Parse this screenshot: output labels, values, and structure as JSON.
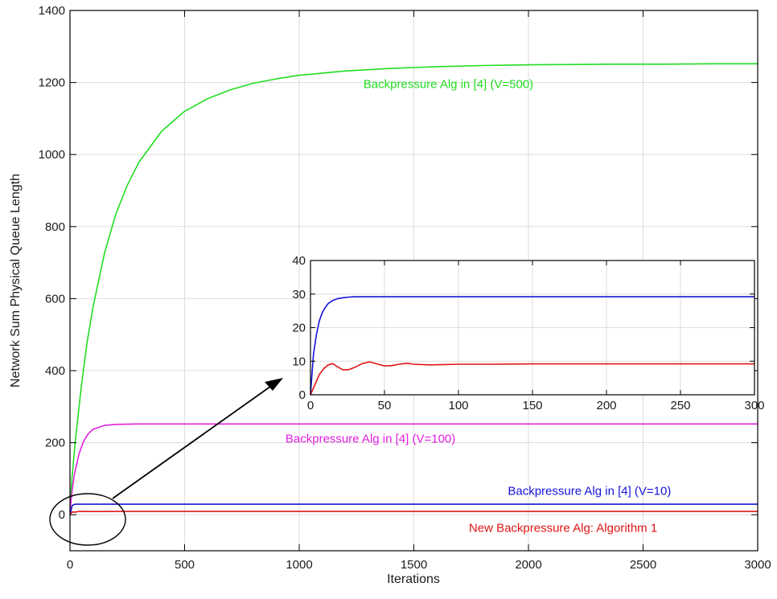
{
  "chart_data": {
    "type": "line",
    "xlabel": "Iterations",
    "ylabel": "Network Sum Physical Queue Length",
    "xlim": [
      0,
      3000
    ],
    "ylim": [
      -100,
      1400
    ],
    "xticks": [
      0,
      500,
      1000,
      1500,
      2000,
      2500,
      3000
    ],
    "yticks": [
      0,
      200,
      400,
      600,
      800,
      1000,
      1200,
      1400
    ],
    "grid": true,
    "series": [
      {
        "name": "Backpressure Alg in [4] (V=500)",
        "color": "#22dd22",
        "x": [
          0,
          10,
          25,
          50,
          75,
          100,
          150,
          200,
          250,
          300,
          400,
          500,
          600,
          700,
          800,
          900,
          1000,
          1200,
          1400,
          1600,
          1800,
          2000,
          2200,
          2400,
          2600,
          2800,
          3000
        ],
        "y": [
          20,
          110,
          215,
          360,
          480,
          575,
          725,
          835,
          915,
          978,
          1065,
          1120,
          1155,
          1180,
          1198,
          1210,
          1220,
          1232,
          1239,
          1244,
          1247,
          1249,
          1250,
          1251,
          1251,
          1252,
          1252
        ]
      },
      {
        "name": "Backpressure Alg in [4] (V=100)",
        "color": "#e020e0",
        "x": [
          0,
          10,
          20,
          40,
          60,
          80,
          100,
          150,
          200,
          300,
          400,
          500,
          700,
          1000,
          1500,
          2000,
          2500,
          3000
        ],
        "y": [
          10,
          70,
          115,
          170,
          205,
          225,
          237,
          248,
          251,
          252,
          252,
          252,
          252,
          252,
          252,
          252,
          252,
          252
        ]
      },
      {
        "name": "Backpressure Alg in [4] (V=10)",
        "color": "#1515d8",
        "x": [
          0,
          10,
          20,
          30,
          50,
          100,
          200,
          500,
          1000,
          1500,
          2000,
          2500,
          3000
        ],
        "y": [
          0,
          26,
          28.8,
          29.2,
          29.2,
          29.2,
          29.2,
          29.2,
          29.2,
          29.2,
          29.2,
          29.2,
          29.2
        ]
      },
      {
        "name": "New Backpressure Alg: Algorithm 1",
        "color": "#e01515",
        "x": [
          0,
          10,
          20,
          30,
          40,
          60,
          100,
          200,
          500,
          1000,
          1500,
          2000,
          2500,
          3000
        ],
        "y": [
          0,
          8,
          7,
          8,
          9.6,
          9,
          9,
          9.2,
          9.2,
          9.2,
          9.2,
          9.2,
          9.2,
          9.2
        ]
      }
    ],
    "annotations": [
      {
        "text": "Backpressure Alg in [4] (V=500)",
        "color": "#22dd22",
        "x": 1280,
        "y": 1185
      },
      {
        "text": "Backpressure Alg in [4] (V=100)",
        "color": "#e020e0",
        "x": 940,
        "y": 200
      },
      {
        "text": "Backpressure Alg in [4] (V=10)",
        "color": "#1515d8",
        "x": 1910,
        "y": 55
      },
      {
        "text": "New Backpressure Alg: Algorithm 1",
        "color": "#e01515",
        "x": 1740,
        "y": -48
      }
    ],
    "inset": {
      "type": "line",
      "xlim": [
        0,
        300
      ],
      "ylim": [
        0,
        40
      ],
      "xticks": [
        0,
        50,
        100,
        150,
        200,
        250,
        300
      ],
      "yticks": [
        0,
        10,
        20,
        30,
        40
      ],
      "grid": true,
      "series": [
        {
          "name": "Backpressure Alg in [4] (V=10)",
          "color": "#1515d8",
          "x": [
            0,
            2,
            4,
            6,
            8,
            10,
            12,
            15,
            18,
            22,
            26,
            30,
            40,
            60,
            80,
            100,
            150,
            200,
            250,
            300
          ],
          "y": [
            0,
            12,
            18,
            22,
            24.5,
            26,
            27.2,
            28.1,
            28.6,
            28.9,
            29.1,
            29.2,
            29.2,
            29.2,
            29.2,
            29.2,
            29.2,
            29.2,
            29.2,
            29.2
          ]
        },
        {
          "name": "New Backpressure Alg: Algorithm 1",
          "color": "#e01515",
          "x": [
            0,
            3,
            6,
            9,
            12,
            15,
            18,
            22,
            26,
            30,
            35,
            40,
            45,
            50,
            55,
            60,
            65,
            70,
            80,
            90,
            100,
            120,
            150,
            200,
            250,
            300
          ],
          "y": [
            0,
            3,
            6,
            7.8,
            8.9,
            9.3,
            8.4,
            7.4,
            7.5,
            8.2,
            9.3,
            9.8,
            9.2,
            8.6,
            8.7,
            9.1,
            9.4,
            9.1,
            8.9,
            9.0,
            9.1,
            9.1,
            9.2,
            9.2,
            9.2,
            9.2
          ]
        }
      ]
    }
  }
}
